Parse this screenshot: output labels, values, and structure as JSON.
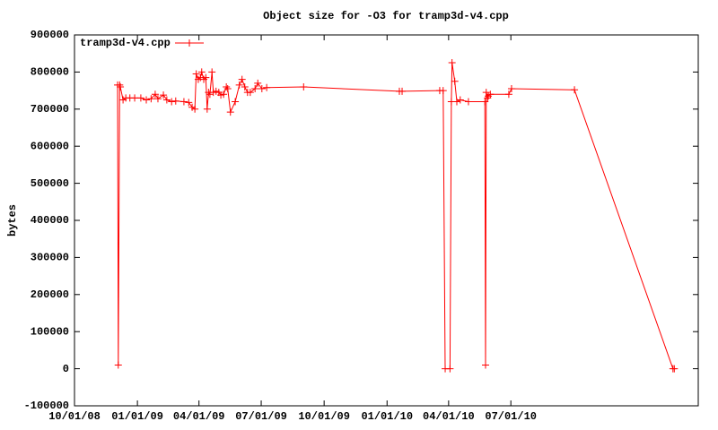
{
  "chart_data": {
    "type": "line",
    "title": "Object size for -O3 for tramp3d-v4.cpp",
    "y_label": "bytes",
    "legend": "top-left",
    "x": [
      "12/03/08",
      "12/04/08",
      "12/06/08",
      "12/07/08",
      "12/11/08",
      "12/15/08",
      "12/21/08",
      "12/28/08",
      "01/06/09",
      "01/14/09",
      "01/21/09",
      "01/27/09",
      "01/31/09",
      "02/08/09",
      "02/13/09",
      "02/20/09",
      "02/26/09",
      "03/10/09",
      "03/17/09",
      "03/22/09",
      "03/26/09",
      "03/28/09",
      "03/31/09",
      "04/03/09",
      "04/05/09",
      "04/08/09",
      "04/11/09",
      "04/13/09",
      "04/15/09",
      "04/17/09",
      "04/20/09",
      "04/22/09",
      "04/26/09",
      "04/30/09",
      "05/03/09",
      "05/07/09",
      "05/11/09",
      "05/13/09",
      "05/17/09",
      "05/24/09",
      "05/30/09",
      "06/03/09",
      "06/07/09",
      "06/11/09",
      "06/15/09",
      "06/22/09",
      "06/26/09",
      "07/02/09",
      "07/09/09",
      "09/01/09",
      "01/19/10",
      "01/23/10",
      "03/19/10",
      "03/24/10",
      "03/27/10",
      "04/03/10",
      "04/05/10",
      "04/06/10",
      "04/10/10",
      "04/13/10",
      "04/18/10",
      "04/30/10",
      "05/24/10",
      "05/25/10",
      "05/26/10",
      "05/28/10",
      "05/29/10",
      "06/01/10",
      "06/28/10",
      "07/02/10",
      "10/02/10",
      "02/23/11",
      "02/25/11"
    ],
    "series": [
      {
        "name": "tramp3d-v4.cpp",
        "color": "#ff0000",
        "values": [
          765000,
          10000,
          765000,
          760000,
          725000,
          730000,
          730000,
          730000,
          730000,
          725000,
          728000,
          740000,
          728000,
          738000,
          725000,
          720000,
          722000,
          720000,
          718000,
          705000,
          700000,
          795000,
          780000,
          785000,
          800000,
          780000,
          785000,
          700000,
          745000,
          740000,
          800000,
          745000,
          748000,
          745000,
          738000,
          740000,
          760000,
          755000,
          692000,
          720000,
          765000,
          780000,
          760000,
          745000,
          745000,
          755000,
          770000,
          755000,
          758000,
          760000,
          748000,
          748000,
          750000,
          750000,
          0,
          0,
          720000,
          825000,
          775000,
          720000,
          725000,
          720000,
          720000,
          10000,
          745000,
          730000,
          735000,
          740000,
          740000,
          755000,
          752000,
          0,
          0
        ]
      }
    ],
    "xlim": [
      "10/01/08",
      "04/01/11"
    ],
    "xticks": [
      "10/01/08",
      "01/01/09",
      "04/01/09",
      "07/01/09",
      "10/01/09",
      "01/01/10",
      "04/01/10",
      "07/01/10"
    ],
    "ylim": [
      -100000,
      900000
    ],
    "yticks": [
      -100000,
      0,
      100000,
      200000,
      300000,
      400000,
      500000,
      600000,
      700000,
      800000,
      900000
    ]
  }
}
